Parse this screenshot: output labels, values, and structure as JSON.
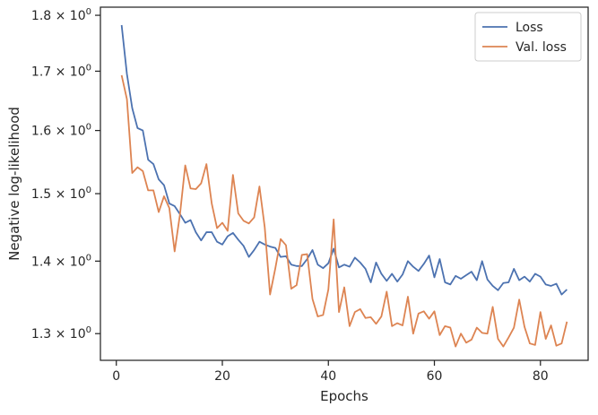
{
  "chart_data": {
    "type": "line",
    "title": "",
    "xlabel": "Epochs",
    "ylabel": "Negative log-likelihood",
    "xlim": [
      -3,
      89
    ],
    "ylim": [
      1.265,
      1.815
    ],
    "yscale": "log",
    "grid": false,
    "legend_position": "top-right",
    "x_ticks": [
      0,
      20,
      40,
      60,
      80
    ],
    "y_ticks": [
      {
        "value": 1.3,
        "base": "1.3",
        "exp": "0"
      },
      {
        "value": 1.4,
        "base": "1.4",
        "exp": "0"
      },
      {
        "value": 1.5,
        "base": "1.5",
        "exp": "0"
      },
      {
        "value": 1.6,
        "base": "1.6",
        "exp": "0"
      },
      {
        "value": 1.7,
        "base": "1.7",
        "exp": "0"
      },
      {
        "value": 1.8,
        "base": "1.8",
        "exp": "0"
      }
    ],
    "x": [
      1,
      2,
      3,
      4,
      5,
      6,
      7,
      8,
      9,
      10,
      11,
      12,
      13,
      14,
      15,
      16,
      17,
      18,
      19,
      20,
      21,
      22,
      23,
      24,
      25,
      26,
      27,
      28,
      29,
      30,
      31,
      32,
      33,
      34,
      35,
      36,
      37,
      38,
      39,
      40,
      41,
      42,
      43,
      44,
      45,
      46,
      47,
      48,
      49,
      50,
      51,
      52,
      53,
      54,
      55,
      56,
      57,
      58,
      59,
      60,
      61,
      62,
      63,
      64,
      65,
      66,
      67,
      68,
      69,
      70,
      71,
      72,
      73,
      74,
      75,
      76,
      77,
      78,
      79,
      80,
      81,
      82,
      83,
      84,
      85
    ],
    "series": [
      {
        "name": "Loss",
        "color": "#4c72b0",
        "values": [
          1.782,
          1.695,
          1.637,
          1.604,
          1.6,
          1.553,
          1.546,
          1.522,
          1.513,
          1.485,
          1.481,
          1.469,
          1.456,
          1.46,
          1.442,
          1.43,
          1.442,
          1.442,
          1.428,
          1.424,
          1.436,
          1.441,
          1.431,
          1.422,
          1.406,
          1.416,
          1.428,
          1.424,
          1.421,
          1.419,
          1.406,
          1.407,
          1.395,
          1.393,
          1.393,
          1.403,
          1.416,
          1.395,
          1.39,
          1.397,
          1.418,
          1.391,
          1.395,
          1.392,
          1.405,
          1.398,
          1.389,
          1.37,
          1.398,
          1.382,
          1.372,
          1.382,
          1.371,
          1.381,
          1.4,
          1.392,
          1.386,
          1.396,
          1.408,
          1.377,
          1.403,
          1.37,
          1.367,
          1.379,
          1.375,
          1.38,
          1.385,
          1.373,
          1.4,
          1.374,
          1.365,
          1.359,
          1.369,
          1.37,
          1.389,
          1.373,
          1.378,
          1.371,
          1.382,
          1.378,
          1.367,
          1.365,
          1.368,
          1.353,
          1.36
        ]
      },
      {
        "name": "Val. loss",
        "color": "#dd8452",
        "values": [
          1.693,
          1.652,
          1.532,
          1.541,
          1.535,
          1.505,
          1.505,
          1.472,
          1.496,
          1.478,
          1.414,
          1.468,
          1.544,
          1.508,
          1.507,
          1.516,
          1.546,
          1.485,
          1.448,
          1.456,
          1.444,
          1.529,
          1.47,
          1.459,
          1.455,
          1.464,
          1.511,
          1.449,
          1.353,
          1.39,
          1.432,
          1.423,
          1.361,
          1.366,
          1.409,
          1.41,
          1.347,
          1.323,
          1.325,
          1.36,
          1.461,
          1.329,
          1.363,
          1.31,
          1.329,
          1.333,
          1.321,
          1.322,
          1.313,
          1.323,
          1.357,
          1.31,
          1.314,
          1.311,
          1.35,
          1.3,
          1.327,
          1.33,
          1.32,
          1.33,
          1.298,
          1.31,
          1.308,
          1.283,
          1.3,
          1.288,
          1.292,
          1.308,
          1.301,
          1.3,
          1.336,
          1.293,
          1.283,
          1.295,
          1.308,
          1.346,
          1.309,
          1.287,
          1.285,
          1.329,
          1.293,
          1.311,
          1.284,
          1.287,
          1.316
        ]
      }
    ]
  }
}
